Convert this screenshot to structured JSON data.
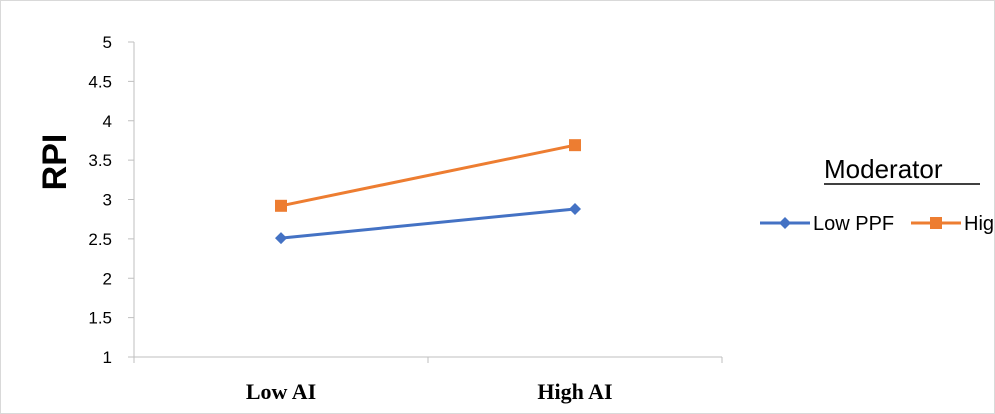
{
  "chart_data": {
    "type": "line",
    "categories": [
      "Low AI",
      "High AI"
    ],
    "series": [
      {
        "name": "Low PPF",
        "values": [
          2.51,
          2.88
        ],
        "color": "#4472C4",
        "marker": "diamond"
      },
      {
        "name": "High PPF",
        "values": [
          2.92,
          3.69
        ],
        "color": "#ED7D31",
        "marker": "square"
      }
    ],
    "ylabel": "RPI",
    "xlabel": "",
    "ylim": [
      1,
      5
    ],
    "yticks": [
      "1",
      "1.5",
      "2",
      "2.5",
      "3",
      "3.5",
      "4",
      "4.5",
      "5"
    ],
    "legend_title": "Moderator",
    "legend_position": "right",
    "grid": false
  }
}
